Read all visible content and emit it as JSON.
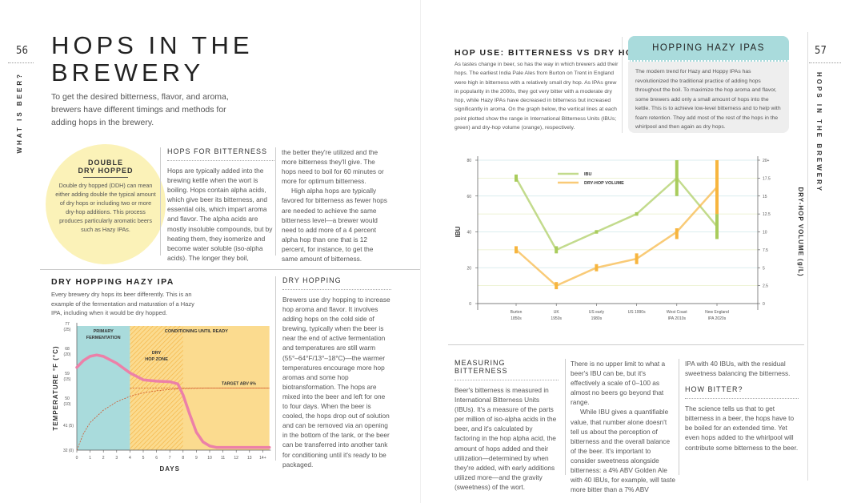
{
  "left_page": {
    "page_number": "56",
    "runner": "WHAT IS BEER?",
    "title_line1": "HOPS IN THE",
    "title_line2": "BREWERY",
    "lead": "To get the desired bitterness, flavor, and aroma, brewers have different timings and methods for adding hops in the brewery.",
    "callout": {
      "title_line1": "DOUBLE",
      "title_line2": "DRY HOPPED",
      "text": "Double dry hopped (DDH) can mean either adding double the typical amount of dry hops or including two or more dry-hop additions. This process produces particularly aromatic beers such as Hazy IPAs."
    },
    "hops_for_bitterness": {
      "heading": "HOPS FOR BITTERNESS",
      "p1": "Hops are typically added into the brewing kettle when the wort is boiling. Hops contain alpha acids, which give beer its bitterness, and essential oils, which impart aroma and flavor. The alpha acids are mostly insoluble compounds, but by heating them, they isomerize and become water soluble (iso-alpha acids). The longer they boil,",
      "p2": "the better they're utilized and the more bitterness they'll give. The hops need to boil for 60 minutes or more for optimum bitterness.",
      "p3": "High alpha hops are typically favored for bitterness as fewer hops are needed to achieve the same bitterness level—a brewer would need to add more of a 4 percent alpha hop than one that is 12 percent, for instance, to get the same amount of bitterness."
    },
    "dry_hopping": {
      "heading": "DRY HOPPING",
      "text": "Brewers use dry hopping to increase hop aroma and flavor. It involves adding hops on the cold side of brewing, typically when the beer is near the end of active fermentation and temperatures are still warm (55°–64°F/13°–18°C)—the warmer temperatures encourage more hop aromas and some hop biotransformation. The hops are mixed into the beer and left for one to four days. When the beer is cooled, the hops drop out of solution and can be removed via an opening in the bottom of the tank, or the beer can be transferred into another tank for conditioning until it's ready to be packaged."
    },
    "hazy_chart_heading": "DRY HOPPING HAZY IPA",
    "hazy_chart_intro": "Every brewery dry hops its beer differently. This is an example of the fermentation and maturation of a Hazy IPA, including when it would be dry hopped."
  },
  "right_page": {
    "page_number": "57",
    "runner": "HOPS IN THE BREWERY",
    "hop_use_heading": "HOP USE: BITTERNESS VS DRY HOP",
    "hop_use_text": "As tastes change in beer, so has the way in which brewers add their hops. The earliest India Pale Ales from Burton on Trent in England were high in bitterness with a relatively small dry hop. As IPAs grew in popularity in the 2000s, they got very bitter with a moderate dry hop, while Hazy IPAs have decreased in bitterness but increased significantly in aroma. On the graph below, the vertical lines at each point plotted show the range in International Bitterness Units (IBUs; green) and dry-hop volume (orange), respectively.",
    "box": {
      "title": "HOPPING HAZY IPAS",
      "text": "The modern trend for Hazy and Hoppy IPAs has revolutionized the traditional practice of adding hops throughout the boil. To maximize the hop aroma and flavor, some brewers add only a small amount of hops into the kettle. This is to achieve low-level bitterness and to help with foam retention. They add most of the rest of the hops in the whirlpool and then again as dry hops."
    },
    "measuring": {
      "heading": "MEASURING BITTERNESS",
      "p1": "Beer's bitterness is measured in International Bitterness Units (IBUs). It's a measure of the parts per million of iso-alpha acids in the beer, and it's calculated by factoring in the hop alpha acid, the amount of hops added and their utilization—determined by when they're added, with early additions utilized more—and the gravity (sweetness) of the wort.",
      "p2": "There is no upper limit to what a beer's IBU can be, but it's effectively a scale of 0–100 as almost no beers go beyond that range.",
      "p3": "While IBU gives a quantifiable value, that number alone doesn't tell us about the perception of bitterness and the overall balance of the beer. It's important to consider sweetness alongside bitterness: a 4% ABV Golden Ale with 40 IBUs, for example, will taste more bitter than a 7% ABV",
      "p4": "IPA with 40 IBUs, with the residual sweetness balancing the bitterness."
    },
    "how_bitter": {
      "heading": "HOW BITTER?",
      "text": "The science tells us that to get bitterness in a beer, the hops have to be boiled for an extended time. Yet even hops added to the whirlpool will contribute some bitterness to the beer."
    }
  },
  "colors": {
    "teal": "#a9dbdc",
    "yellow": "#fbdb8f",
    "hatch": "#f5b342",
    "pink": "#ec80a8",
    "green": "#a9cc5c",
    "orange": "#f7b53e",
    "callout": "#fbf2b8",
    "box_header": "#a9dbdc",
    "box_body": "#eeeeee"
  },
  "chart_data": [
    {
      "type": "line",
      "title": "DRY HOPPING HAZY IPA",
      "xlabel": "DAYS",
      "ylabel": "TEMPERATURE °F (°C)",
      "x_ticks": [
        "0",
        "1",
        "2",
        "3",
        "4",
        "5",
        "6",
        "7",
        "8",
        "9",
        "10",
        "11",
        "12",
        "13",
        "14+"
      ],
      "y_ticks": [
        "32 (0)",
        "41 (5)",
        "50 (10)",
        "59 (15)",
        "68 (20)",
        "77 (25)"
      ],
      "ylim": [
        32,
        77
      ],
      "regions": [
        {
          "label": "PRIMARY FERMENTATION",
          "from": 0,
          "to": 4
        },
        {
          "label": "DRY HOP ZONE",
          "from": 4,
          "to": 8
        },
        {
          "label": "CONDITIONING UNTIL READY",
          "from": 4,
          "to": 14.5
        }
      ],
      "series": [
        {
          "name": "temperature",
          "x": [
            0,
            0.5,
            1,
            1.5,
            2,
            3,
            4,
            5,
            6,
            7,
            7.6,
            8,
            8.5,
            9,
            9.5,
            10,
            10.5,
            11,
            12,
            13,
            14.5
          ],
          "y": [
            62,
            64.5,
            66,
            66.5,
            66,
            63.5,
            60,
            57.5,
            57,
            56.8,
            56,
            52,
            45,
            38.5,
            35,
            33.5,
            33,
            33,
            33,
            33,
            33
          ]
        },
        {
          "name": "alcohol",
          "x": [
            0,
            0.5,
            1,
            2,
            3,
            4,
            5,
            6,
            7,
            8,
            10,
            14.5
          ],
          "y": [
            32,
            38,
            42,
            46.5,
            49.5,
            51.5,
            52.8,
            53.5,
            54,
            54.3,
            54.5,
            54.5
          ]
        }
      ],
      "annotations": [
        "TARGET ABV 6%"
      ],
      "target_level": 54.5
    },
    {
      "type": "line",
      "xlabel": "",
      "ylabel": "IBU",
      "y2label": "DRY-HOP VOLUME (g/L)",
      "categories": [
        [
          "Burton",
          "1850s"
        ],
        [
          "UK",
          "1950s"
        ],
        [
          "US early",
          "1980s"
        ],
        [
          "US 1990s",
          ""
        ],
        [
          "West Coast",
          "IPA 2010s"
        ],
        [
          "New England",
          "IPA 2020s"
        ]
      ],
      "y_ticks": [
        "0",
        "20",
        "40",
        "60",
        "80"
      ],
      "y2_ticks": [
        "0",
        "2.5",
        "5",
        "7.5",
        "10",
        "12.5",
        "15",
        "17.5",
        "20+"
      ],
      "ylim": [
        0,
        80
      ],
      "y2lim": [
        0,
        20
      ],
      "grid": true,
      "legend": "top-center",
      "series": [
        {
          "name": "IBU",
          "axis": "left",
          "values": [
            70,
            30,
            40,
            50,
            70,
            43
          ],
          "ranges": [
            [
              68,
              72
            ],
            [
              28,
              32
            ],
            [
              39,
              41
            ],
            [
              49,
              51
            ],
            [
              60,
              80
            ],
            [
              36,
              50
            ]
          ]
        },
        {
          "name": "DRY-HOP VOLUME",
          "axis": "right",
          "values": [
            7.5,
            2.5,
            5,
            6.25,
            10,
            16.25
          ],
          "ranges": [
            [
              7,
              8
            ],
            [
              2,
              3
            ],
            [
              4.5,
              5.5
            ],
            [
              5.5,
              7
            ],
            [
              9,
              10.5
            ],
            [
              12.5,
              20
            ]
          ]
        }
      ]
    }
  ]
}
